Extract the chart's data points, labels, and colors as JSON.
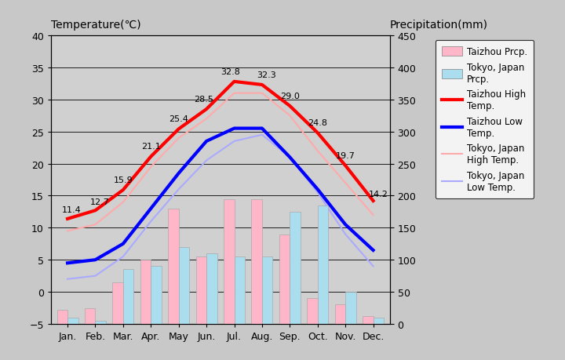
{
  "months": [
    "Jan.",
    "Feb.",
    "Mar.",
    "Apr.",
    "May",
    "Jun.",
    "Jul.",
    "Aug.",
    "Sep.",
    "Oct.",
    "Nov.",
    "Dec."
  ],
  "taizhou_high": [
    11.4,
    12.7,
    15.9,
    21.1,
    25.4,
    28.5,
    32.8,
    32.3,
    29.0,
    24.8,
    19.7,
    14.2
  ],
  "taizhou_low": [
    4.5,
    5.0,
    7.5,
    13.0,
    18.5,
    23.5,
    25.5,
    25.5,
    21.0,
    16.0,
    10.5,
    6.5
  ],
  "tokyo_high": [
    9.5,
    10.5,
    14.0,
    19.5,
    24.0,
    27.0,
    31.0,
    31.0,
    27.5,
    22.0,
    17.0,
    12.0
  ],
  "tokyo_low": [
    2.0,
    2.5,
    5.5,
    11.0,
    16.0,
    20.5,
    23.5,
    24.5,
    21.0,
    15.5,
    9.0,
    4.0
  ],
  "taizhou_prcp_mm": [
    22,
    25,
    65,
    100,
    180,
    105,
    195,
    195,
    140,
    40,
    30,
    12
  ],
  "tokyo_prcp_mm": [
    10,
    5,
    85,
    90,
    120,
    110,
    105,
    105,
    175,
    185,
    50,
    10
  ],
  "taizhou_high_labels": [
    "11.4",
    "12.7",
    "15.9",
    "21.1",
    "25.4",
    "28.5",
    "32.8",
    "32.3",
    "29.0",
    "24.8",
    "19.7",
    "14.2"
  ],
  "taizhou_high_color": "#ff0000",
  "taizhou_low_color": "#0000ff",
  "tokyo_high_color": "#ffaaaa",
  "tokyo_low_color": "#aaaaff",
  "taizhou_prcp_color": "#ffb6c8",
  "tokyo_prcp_color": "#aadeee",
  "bg_color": "#c8c8c8",
  "plot_bg_color": "#d0d0d0",
  "ylim_temp": [
    -5,
    40
  ],
  "ylim_prcp": [
    0,
    450
  ],
  "title_left": "Temperature(℃)",
  "title_right": "Precipitation(mm)",
  "legend_labels": [
    "Taizhou Prcp.",
    "Tokyo, Japan\nPrcp.",
    "Taizhou High\nTemp.",
    "Taizhou Low\nTemp.",
    "Tokyo, Japan\nHigh Temp.",
    "Tokyo, Japan\nLow Temp."
  ]
}
